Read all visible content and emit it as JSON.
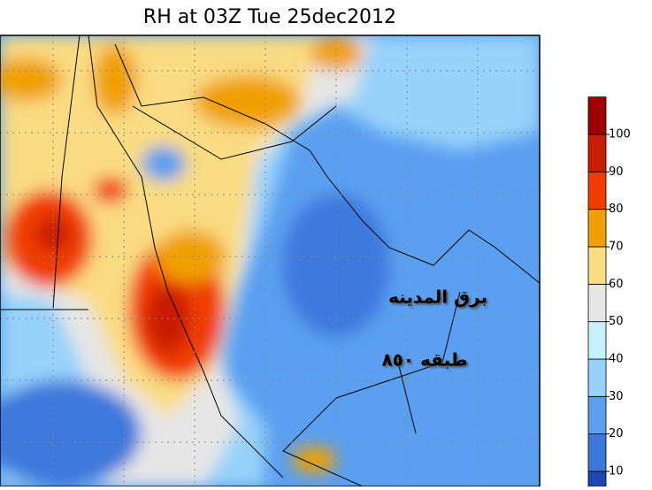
{
  "title": "RH at 03Z Tue 25dec2012",
  "annotations": [
    "برق المدينه",
    "طبقه ٨٥٠"
  ],
  "colorbar": {
    "levels": [
      10,
      20,
      30,
      40,
      50,
      60,
      70,
      80,
      90,
      100
    ],
    "colors": [
      "#1e46b4",
      "#3c78dc",
      "#5a9ff0",
      "#96d2fa",
      "#c8f0ff",
      "#e6e6e6",
      "#fadc82",
      "#f0a000",
      "#f03c00",
      "#c81e00",
      "#a00000"
    ]
  }
}
